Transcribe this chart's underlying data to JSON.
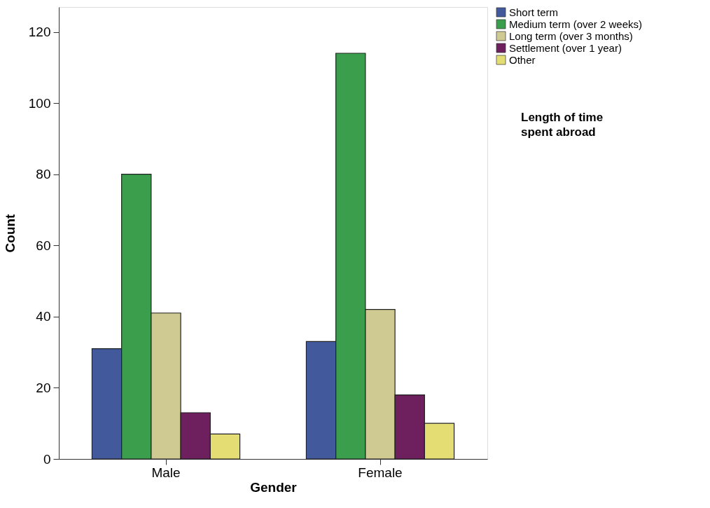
{
  "chart_data": {
    "type": "bar",
    "xlabel": "Gender",
    "ylabel": "Count",
    "legend_title": "Length of time spent abroad",
    "categories": [
      "Male",
      "Female"
    ],
    "series": [
      {
        "name": "Short term",
        "color": "#42599b",
        "values": [
          31,
          33
        ]
      },
      {
        "name": "Medium term (over 2 weeks)",
        "color": "#3a9e4c",
        "values": [
          80,
          114
        ]
      },
      {
        "name": "Long term (over 3 months)",
        "color": "#cfca92",
        "values": [
          41,
          42
        ]
      },
      {
        "name": "Settlement (over 1 year)",
        "color": "#6e1f5d",
        "values": [
          13,
          18
        ]
      },
      {
        "name": "Other",
        "color": "#e3dd73",
        "values": [
          7,
          10
        ]
      }
    ],
    "ylim": [
      0,
      127
    ],
    "yticks": [
      0,
      20,
      40,
      60,
      80,
      100,
      120
    ],
    "grid": false,
    "legend": "right"
  }
}
